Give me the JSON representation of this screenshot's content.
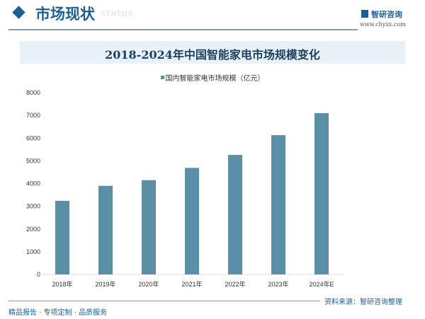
{
  "header": {
    "section_title": "市场现状",
    "section_sub": "status",
    "logo_text": "智研咨询",
    "url": "www.chyxx.com"
  },
  "footer": {
    "left": "精品报告 · 专项定制 · 品质服务",
    "source": "资料来源：智研咨询整理"
  },
  "colors": {
    "bar": "#5b8fa8",
    "brand": "#1f5f8f"
  },
  "chart_data": {
    "type": "bar",
    "title": "2018-2024年中国智能家电市场规模变化",
    "categories": [
      "2018年",
      "2019年",
      "2020年",
      "2021年",
      "2022年",
      "2023年",
      "2024年E"
    ],
    "series": [
      {
        "name": "国内智能家电市场规模（亿元）",
        "values": [
          3240,
          3900,
          4150,
          4690,
          5260,
          6130,
          7100
        ]
      }
    ],
    "ylim": [
      0,
      8000
    ],
    "yticks": [
      "0",
      "1000",
      "2000",
      "3000",
      "4000",
      "5000",
      "6000",
      "7000",
      "8000"
    ],
    "grid": false,
    "legend": "top"
  }
}
